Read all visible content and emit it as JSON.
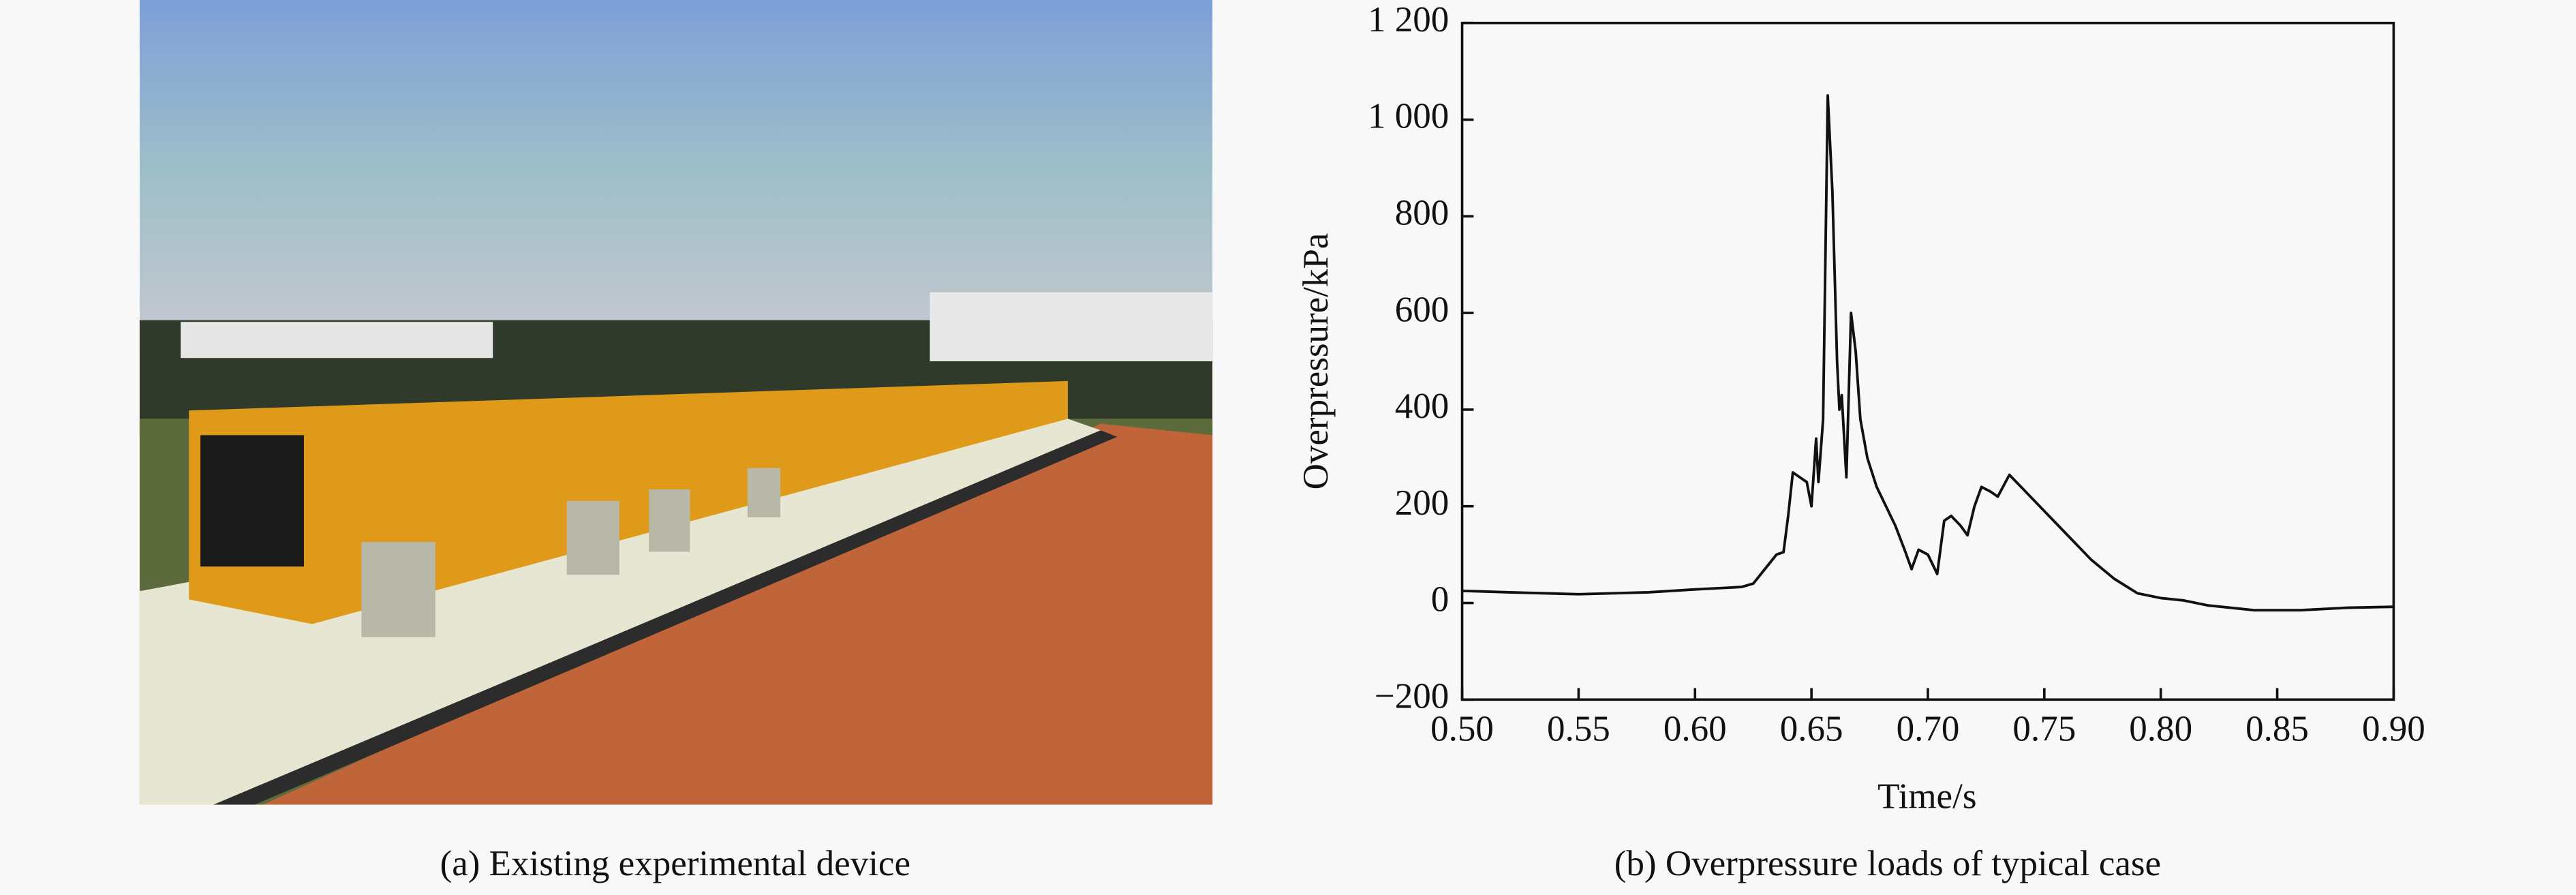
{
  "photo": {
    "caption": "(a) Existing experimental device"
  },
  "chart_data": {
    "type": "line",
    "caption": "(b) Overpressure loads of typical case",
    "xlabel": "Time/s",
    "ylabel": "Overpressure/kPa",
    "color": "#111111",
    "xlim": [
      0.5,
      0.9
    ],
    "xticks": [
      {
        "value": 0.5,
        "label": "0.50"
      },
      0.55,
      {
        "value": 0.6,
        "label": "0.60"
      },
      0.65,
      {
        "value": 0.7,
        "label": "0.70"
      },
      0.75,
      {
        "value": 0.8,
        "label": "0.80"
      },
      0.85,
      {
        "value": 0.9,
        "label": "0.90"
      }
    ],
    "ylim": [
      -200,
      1200
    ],
    "yticks": [
      {
        "value": -200,
        "label": "−200"
      },
      0,
      200,
      400,
      600,
      800,
      {
        "value": 1000,
        "label": "1 000"
      },
      {
        "value": 1200,
        "label": "1 200"
      }
    ],
    "x": [
      0.5,
      0.52,
      0.55,
      0.58,
      0.6,
      0.62,
      0.625,
      0.63,
      0.635,
      0.638,
      0.64,
      0.642,
      0.645,
      0.648,
      0.65,
      0.652,
      0.653,
      0.655,
      0.657,
      0.659,
      0.661,
      0.662,
      0.663,
      0.665,
      0.667,
      0.669,
      0.671,
      0.674,
      0.678,
      0.682,
      0.686,
      0.69,
      0.693,
      0.696,
      0.7,
      0.704,
      0.707,
      0.71,
      0.714,
      0.717,
      0.72,
      0.723,
      0.727,
      0.73,
      0.735,
      0.74,
      0.75,
      0.76,
      0.77,
      0.78,
      0.79,
      0.8,
      0.81,
      0.82,
      0.84,
      0.86,
      0.88,
      0.9
    ],
    "values": [
      25,
      22,
      18,
      22,
      28,
      33,
      40,
      70,
      100,
      105,
      180,
      270,
      260,
      250,
      200,
      340,
      250,
      380,
      1050,
      850,
      500,
      400,
      430,
      260,
      600,
      520,
      380,
      300,
      240,
      200,
      160,
      110,
      70,
      110,
      100,
      60,
      170,
      180,
      160,
      140,
      200,
      240,
      230,
      220,
      265,
      240,
      190,
      140,
      90,
      50,
      20,
      10,
      5,
      -5,
      -15,
      -15,
      -10,
      -8
    ]
  }
}
